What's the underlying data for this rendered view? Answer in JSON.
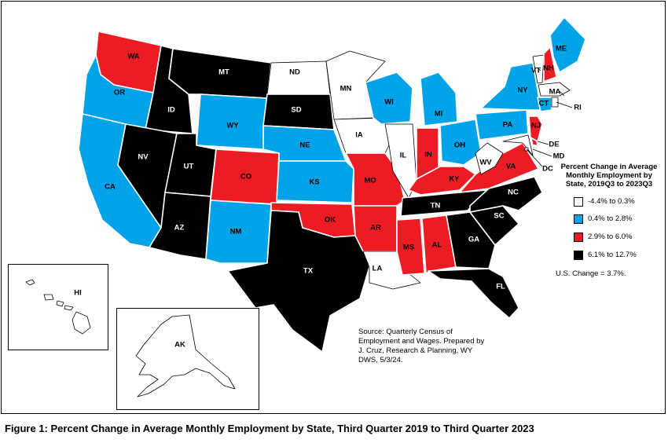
{
  "colors": {
    "range1": "#ffffff",
    "range2": "#00a2e8",
    "range3": "#ed1c24",
    "range4": "#000000"
  },
  "legend": {
    "title": "Percent Change in Average Monthly Employment by State, 2019Q3 to 2023Q3",
    "items": [
      {
        "label": "-4.4% to 0.3%",
        "color": "#ffffff"
      },
      {
        "label": "0.4% to 2.8%",
        "color": "#00a2e8"
      },
      {
        "label": "2.9% to 6.0%",
        "color": "#ed1c24"
      },
      {
        "label": "6.1% to 12.7%",
        "color": "#000000"
      }
    ]
  },
  "us_change": "U.S. Change = 3.7%.",
  "source": "Source: Quarterly Census of Employment and Wages. Prepared by J. Cruz, Research & Planning, WY DWS, 5/3/24.",
  "caption": "Figure 1: Percent Change in Average Monthly Employment by State, Third Quarter 2019 to Third Quarter 2023",
  "states": {
    "WA": {
      "label": "WA",
      "range": 3
    },
    "OR": {
      "label": "OR",
      "range": 2
    },
    "CA": {
      "label": "CA",
      "range": 2
    },
    "ID": {
      "label": "ID",
      "range": 4
    },
    "NV": {
      "label": "NV",
      "range": 4
    },
    "MT": {
      "label": "MT",
      "range": 4
    },
    "WY": {
      "label": "WY",
      "range": 2
    },
    "UT": {
      "label": "UT",
      "range": 4
    },
    "AZ": {
      "label": "AZ",
      "range": 4
    },
    "CO": {
      "label": "CO",
      "range": 3
    },
    "NM": {
      "label": "NM",
      "range": 2
    },
    "ND": {
      "label": "ND",
      "range": 1
    },
    "SD": {
      "label": "SD",
      "range": 4
    },
    "NE": {
      "label": "NE",
      "range": 2
    },
    "KS": {
      "label": "KS",
      "range": 2
    },
    "OK": {
      "label": "OK",
      "range": 3
    },
    "TX": {
      "label": "TX",
      "range": 4
    },
    "MN": {
      "label": "MN",
      "range": 1
    },
    "IA": {
      "label": "IA",
      "range": 1
    },
    "MO": {
      "label": "MO",
      "range": 3
    },
    "AR": {
      "label": "AR",
      "range": 3
    },
    "LA": {
      "label": "LA",
      "range": 1
    },
    "WI": {
      "label": "WI",
      "range": 2
    },
    "IL": {
      "label": "IL",
      "range": 1
    },
    "MI": {
      "label": "MI",
      "range": 2
    },
    "IN": {
      "label": "IN",
      "range": 3
    },
    "OH": {
      "label": "OH",
      "range": 2
    },
    "KY": {
      "label": "KY",
      "range": 3
    },
    "TN": {
      "label": "TN",
      "range": 4
    },
    "MS": {
      "label": "MS",
      "range": 3
    },
    "AL": {
      "label": "AL",
      "range": 3
    },
    "GA": {
      "label": "GA",
      "range": 4
    },
    "FL": {
      "label": "FL",
      "range": 4
    },
    "SC": {
      "label": "SC",
      "range": 4
    },
    "NC": {
      "label": "NC",
      "range": 4
    },
    "VA": {
      "label": "VA",
      "range": 3
    },
    "WV": {
      "label": "WV",
      "range": 1
    },
    "MD": {
      "label": "MD",
      "range": 1
    },
    "DE": {
      "label": "DE",
      "range": 3
    },
    "DC": {
      "label": "DC",
      "range": 1
    },
    "PA": {
      "label": "PA",
      "range": 2
    },
    "NJ": {
      "label": "NJ",
      "range": 3
    },
    "NY": {
      "label": "NY",
      "range": 2
    },
    "CT": {
      "label": "CT",
      "range": 2
    },
    "RI": {
      "label": "RI",
      "range": 1
    },
    "MA": {
      "label": "MA",
      "range": 1
    },
    "VT": {
      "label": "VT",
      "range": 1
    },
    "NH": {
      "label": "NH",
      "range": 3
    },
    "ME": {
      "label": "ME",
      "range": 2
    },
    "HI": {
      "label": "HI",
      "range": 1
    },
    "AK": {
      "label": "AK",
      "range": 1
    }
  }
}
